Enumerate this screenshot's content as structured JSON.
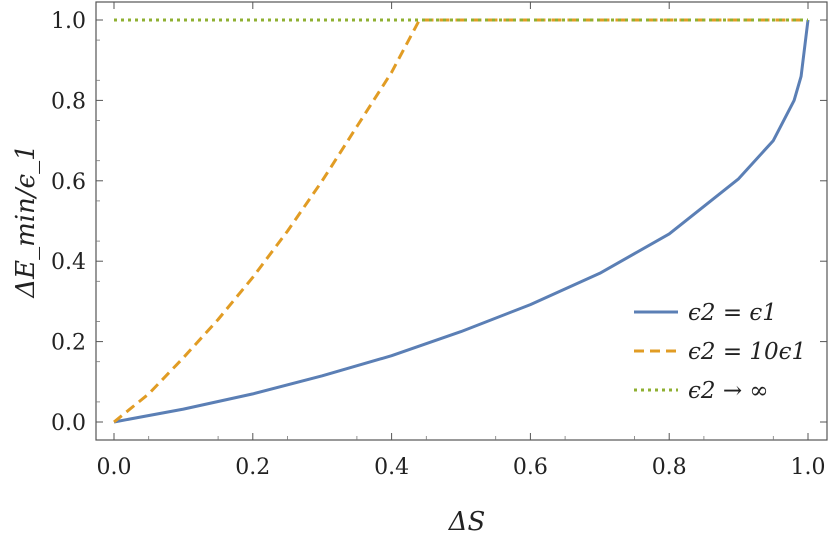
{
  "chart_data": {
    "type": "line",
    "xlabel": "ΔS",
    "ylabel": "ΔE_min/ϵ_1",
    "xlim": [
      0,
      1
    ],
    "ylim": [
      0,
      1
    ],
    "xticks": [
      "0.0",
      "0.2",
      "0.4",
      "0.6",
      "0.8",
      "1.0"
    ],
    "yticks": [
      "0.0",
      "0.2",
      "0.4",
      "0.6",
      "0.8",
      "1.0"
    ],
    "grid": false,
    "legend_position": "bottom-right",
    "series": [
      {
        "name": "ϵ2 = ϵ1",
        "style": "solid",
        "color": "#5b7fb5",
        "x": [
          0,
          0.1,
          0.2,
          0.3,
          0.4,
          0.5,
          0.6,
          0.7,
          0.8,
          0.9,
          0.95,
          0.98,
          0.99,
          1.0
        ],
        "y": [
          0,
          0.032,
          0.07,
          0.115,
          0.165,
          0.225,
          0.292,
          0.37,
          0.468,
          0.605,
          0.7,
          0.8,
          0.86,
          1.0
        ]
      },
      {
        "name": "ϵ2 = 10ϵ1",
        "style": "dashed",
        "color": "#e19c24",
        "x": [
          0,
          0.05,
          0.1,
          0.15,
          0.2,
          0.25,
          0.3,
          0.35,
          0.4,
          0.44,
          0.5,
          0.6,
          0.7,
          0.8,
          0.9,
          1.0
        ],
        "y": [
          0,
          0.07,
          0.16,
          0.255,
          0.36,
          0.475,
          0.6,
          0.735,
          0.87,
          1.0,
          1.0,
          1.0,
          1.0,
          1.0,
          1.0,
          1.0
        ]
      },
      {
        "name": "ϵ2 → ∞",
        "style": "dotted",
        "color": "#8fb032",
        "x": [
          0,
          1.0
        ],
        "y": [
          1.0,
          1.0
        ]
      }
    ]
  }
}
